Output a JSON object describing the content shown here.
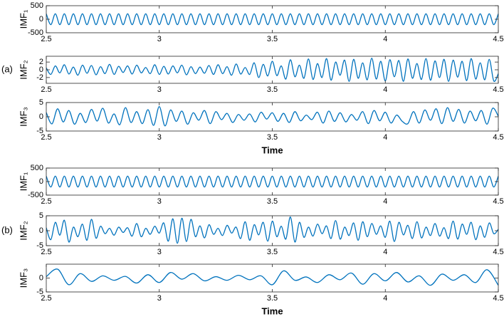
{
  "chart_data": [
    {
      "type": "line",
      "ylabel": "IMF₁",
      "color": "#0072bd",
      "x": [
        2.5,
        2.52,
        2.54,
        2.56,
        2.58,
        2.6,
        2.62,
        2.64,
        2.66,
        2.68,
        2.7,
        2.72,
        2.74,
        2.76,
        2.78,
        2.8,
        2.82,
        2.84,
        2.86,
        2.88,
        2.9,
        2.92,
        2.94,
        2.96,
        2.98,
        3,
        3.02,
        3.04,
        3.06,
        3.08,
        3.1,
        3.12,
        3.14,
        3.16,
        3.18,
        3.2,
        3.22,
        3.24,
        3.26,
        3.28,
        3.3,
        3.32,
        3.34,
        3.36,
        3.38,
        3.4,
        3.42,
        3.44,
        3.46,
        3.48,
        3.5,
        3.52,
        3.54,
        3.56,
        3.58,
        3.6,
        3.62,
        3.64,
        3.66,
        3.68,
        3.7,
        3.72,
        3.74,
        3.76,
        3.78,
        3.8,
        3.82,
        3.84,
        3.86,
        3.88,
        3.9,
        3.92,
        3.94,
        3.96,
        3.98,
        4,
        4.02,
        4.04,
        4.06,
        4.08,
        4.1,
        4.12,
        4.14,
        4.16,
        4.18,
        4.2,
        4.22,
        4.24,
        4.26,
        4.28,
        4.3,
        4.32,
        4.34,
        4.36,
        4.38,
        4.4,
        4.42,
        4.44,
        4.46,
        4.48,
        4.5
      ],
      "values": [
        200,
        -200,
        200,
        -200,
        200,
        -200,
        200,
        -200,
        200,
        -200,
        200,
        -200,
        200,
        -200,
        200,
        -200,
        200,
        -200,
        200,
        -200,
        200,
        -200,
        200,
        -200,
        200,
        -200,
        200,
        -200,
        200,
        -200,
        200,
        -200,
        200,
        -200,
        200,
        -200,
        200,
        -200,
        200,
        -200,
        200,
        -200,
        200,
        -200,
        200,
        -200,
        200,
        -200,
        200,
        -200,
        200,
        -200,
        200,
        -200,
        200,
        -200,
        200,
        -200,
        200,
        -200,
        200,
        -200,
        200,
        -200,
        200,
        -200,
        200,
        -200,
        200,
        -200,
        200,
        -200,
        200,
        -200,
        200,
        -200,
        200,
        -200,
        200,
        -200,
        200,
        -200,
        200,
        -200,
        200,
        -200,
        200,
        -200,
        200,
        -200,
        200,
        -200,
        200,
        -200,
        200,
        -200,
        200,
        -200,
        200,
        -200,
        200
      ],
      "xlim": [
        2.5,
        4.5
      ],
      "xticks": [
        2.5,
        3,
        3.5,
        4,
        4.5
      ],
      "ylim": [
        -500,
        500
      ],
      "yticks": [
        -500,
        0,
        500
      ]
    },
    {
      "type": "line",
      "ylabel": "IMF₂",
      "panel_label": "(a)",
      "color": "#0072bd",
      "x": [
        2.5,
        2.52,
        2.54,
        2.56,
        2.58,
        2.6,
        2.62,
        2.64,
        2.66,
        2.68,
        2.7,
        2.72,
        2.74,
        2.76,
        2.78,
        2.8,
        2.82,
        2.84,
        2.86,
        2.88,
        2.9,
        2.92,
        2.94,
        2.96,
        2.98,
        3,
        3.02,
        3.04,
        3.06,
        3.08,
        3.1,
        3.12,
        3.14,
        3.16,
        3.18,
        3.2,
        3.22,
        3.24,
        3.26,
        3.28,
        3.3,
        3.32,
        3.34,
        3.36,
        3.38,
        3.4,
        3.42,
        3.44,
        3.46,
        3.48,
        3.5,
        3.52,
        3.54,
        3.56,
        3.58,
        3.6,
        3.62,
        3.64,
        3.66,
        3.68,
        3.7,
        3.72,
        3.74,
        3.76,
        3.78,
        3.8,
        3.82,
        3.84,
        3.86,
        3.88,
        3.9,
        3.92,
        3.94,
        3.96,
        3.98,
        4,
        4.02,
        4.04,
        4.06,
        4.08,
        4.1,
        4.12,
        4.14,
        4.16,
        4.18,
        4.2,
        4.22,
        4.24,
        4.26,
        4.28,
        4.3,
        4.32,
        4.34,
        4.36,
        4.38,
        4.4,
        4.42,
        4.44,
        4.46,
        4.48,
        4.5
      ],
      "values": [
        0.5,
        -1.2,
        1.0,
        -0.8,
        1.3,
        -1.1,
        0.7,
        -1.4,
        1.2,
        -0.9,
        1.1,
        -1.3,
        0.8,
        -1.0,
        1.4,
        -1.2,
        0.9,
        -0.7,
        1.0,
        -1.1,
        1.2,
        -0.8,
        0.6,
        -1.0,
        1.3,
        -1.2,
        0.9,
        -1.1,
        1.0,
        -0.8,
        1.2,
        -1.3,
        0.8,
        -1.0,
        0.7,
        -0.9,
        1.1,
        -1.2,
        1.3,
        -1.0,
        0.8,
        -1.4,
        1.5,
        -1.1,
        0.6,
        -1.2,
        1.8,
        -2.0,
        1.4,
        -1.6,
        2.2,
        -1.5,
        1.0,
        -2.4,
        2.6,
        -1.8,
        1.2,
        -2.2,
        2.8,
        -2.5,
        1.6,
        -2.0,
        2.9,
        -2.7,
        2.0,
        -1.4,
        2.5,
        -3.0,
        2.7,
        -2.2,
        1.8,
        -2.6,
        3.0,
        -2.4,
        2.2,
        -2.9,
        2.6,
        -1.8,
        2.4,
        -3.0,
        2.8,
        -2.2,
        1.6,
        -2.5,
        2.9,
        -2.7,
        2.3,
        -2.0,
        2.7,
        -3.0,
        2.5,
        -1.9,
        2.2,
        -2.8,
        2.9,
        -2.4,
        1.8,
        -2.6,
        2.7,
        -2.9,
        -1.0
      ],
      "xlim": [
        2.5,
        4.5
      ],
      "xticks": [
        2.5,
        3,
        3.5,
        4,
        4.5
      ],
      "ylim": [
        -3.5,
        3.5
      ],
      "yticks": [
        -2,
        0,
        2
      ]
    },
    {
      "type": "line",
      "ylabel": "IMF₃",
      "xlabel": "Time",
      "color": "#0072bd",
      "x": [
        2.5,
        2.525,
        2.55,
        2.575,
        2.6,
        2.625,
        2.65,
        2.675,
        2.7,
        2.725,
        2.75,
        2.775,
        2.8,
        2.825,
        2.85,
        2.875,
        2.9,
        2.925,
        2.95,
        2.975,
        3,
        3.025,
        3.05,
        3.075,
        3.1,
        3.125,
        3.15,
        3.175,
        3.2,
        3.225,
        3.25,
        3.275,
        3.3,
        3.325,
        3.35,
        3.375,
        3.4,
        3.425,
        3.45,
        3.475,
        3.5,
        3.525,
        3.55,
        3.575,
        3.6,
        3.625,
        3.65,
        3.675,
        3.7,
        3.725,
        3.75,
        3.775,
        3.8,
        3.825,
        3.85,
        3.875,
        3.9,
        3.925,
        3.95,
        3.975,
        4,
        4.025,
        4.05,
        4.075,
        4.1,
        4.125,
        4.15,
        4.175,
        4.2,
        4.225,
        4.25,
        4.275,
        4.3,
        4.325,
        4.35,
        4.375,
        4.4,
        4.425,
        4.45,
        4.475,
        4.5
      ],
      "values": [
        1.5,
        -2.5,
        2.8,
        -1.8,
        2.2,
        -2.6,
        1.2,
        -2.0,
        2.6,
        -1.5,
        3.0,
        -2.2,
        1.0,
        -2.8,
        3.2,
        -2.0,
        1.8,
        -2.4,
        2.5,
        -3.0,
        3.6,
        -3.2,
        2.4,
        -1.6,
        2.0,
        -2.6,
        1.4,
        -1.2,
        2.2,
        -2.4,
        1.8,
        -1.0,
        1.2,
        -2.0,
        0.8,
        -1.2,
        1.0,
        -1.8,
        1.6,
        -0.8,
        1.4,
        -1.6,
        1.2,
        -2.0,
        1.8,
        -1.4,
        0.6,
        -1.0,
        1.6,
        -2.2,
        2.0,
        -1.6,
        1.4,
        -1.8,
        0.8,
        -1.2,
        1.8,
        -2.4,
        2.2,
        -1.4,
        1.6,
        -2.2,
        0.6,
        -1.6,
        -2.4,
        1.8,
        -2.2,
        2.4,
        -1.2,
        2.8,
        -2.4,
        3.2,
        -1.6,
        2.6,
        -2.2,
        2.0,
        -1.4,
        2.2,
        -2.6,
        3.0,
        0.2
      ],
      "xlim": [
        2.5,
        4.5
      ],
      "xticks": [
        2.5,
        3,
        3.5,
        4,
        4.5
      ],
      "ylim": [
        -5,
        5
      ],
      "yticks": [
        -5,
        0,
        5
      ]
    },
    {
      "type": "line",
      "ylabel": "IMF₁",
      "color": "#0072bd",
      "x": [
        2.5,
        2.52,
        2.54,
        2.56,
        2.58,
        2.6,
        2.62,
        2.64,
        2.66,
        2.68,
        2.7,
        2.72,
        2.74,
        2.76,
        2.78,
        2.8,
        2.82,
        2.84,
        2.86,
        2.88,
        2.9,
        2.92,
        2.94,
        2.96,
        2.98,
        3,
        3.02,
        3.04,
        3.06,
        3.08,
        3.1,
        3.12,
        3.14,
        3.16,
        3.18,
        3.2,
        3.22,
        3.24,
        3.26,
        3.28,
        3.3,
        3.32,
        3.34,
        3.36,
        3.38,
        3.4,
        3.42,
        3.44,
        3.46,
        3.48,
        3.5,
        3.52,
        3.54,
        3.56,
        3.58,
        3.6,
        3.62,
        3.64,
        3.66,
        3.68,
        3.7,
        3.72,
        3.74,
        3.76,
        3.78,
        3.8,
        3.82,
        3.84,
        3.86,
        3.88,
        3.9,
        3.92,
        3.94,
        3.96,
        3.98,
        4,
        4.02,
        4.04,
        4.06,
        4.08,
        4.1,
        4.12,
        4.14,
        4.16,
        4.18,
        4.2,
        4.22,
        4.24,
        4.26,
        4.28,
        4.3,
        4.32,
        4.34,
        4.36,
        4.38,
        4.4,
        4.42,
        4.44,
        4.46,
        4.48,
        4.5
      ],
      "values": [
        200,
        -200,
        200,
        -200,
        200,
        -200,
        200,
        -200,
        200,
        -200,
        200,
        -200,
        200,
        -200,
        200,
        -200,
        200,
        -200,
        200,
        -200,
        200,
        -200,
        200,
        -200,
        200,
        -200,
        200,
        -200,
        200,
        -200,
        200,
        -200,
        200,
        -200,
        200,
        -200,
        200,
        -200,
        200,
        -200,
        200,
        -200,
        200,
        -200,
        200,
        -200,
        200,
        -200,
        200,
        -200,
        200,
        -200,
        200,
        -200,
        200,
        -200,
        200,
        -200,
        200,
        -200,
        200,
        -200,
        200,
        -200,
        200,
        -200,
        200,
        -200,
        200,
        -200,
        200,
        -200,
        200,
        -200,
        200,
        -200,
        200,
        -200,
        200,
        -200,
        200,
        -200,
        200,
        -200,
        200,
        -200,
        200,
        -200,
        200,
        -200,
        200,
        -200,
        200,
        -200,
        200,
        -200,
        200,
        -200,
        200,
        -200,
        200
      ],
      "xlim": [
        2.5,
        4.5
      ],
      "xticks": [
        2.5,
        3,
        3.5,
        4,
        4.5
      ],
      "ylim": [
        -500,
        500
      ],
      "yticks": [
        -500,
        0,
        500
      ]
    },
    {
      "type": "line",
      "ylabel": "IMF₂",
      "panel_label": "(b)",
      "color": "#0072bd",
      "x": [
        2.5,
        2.52,
        2.54,
        2.56,
        2.58,
        2.6,
        2.62,
        2.64,
        2.66,
        2.68,
        2.7,
        2.72,
        2.74,
        2.76,
        2.78,
        2.8,
        2.82,
        2.84,
        2.86,
        2.88,
        2.9,
        2.92,
        2.94,
        2.96,
        2.98,
        3,
        3.02,
        3.04,
        3.06,
        3.08,
        3.1,
        3.12,
        3.14,
        3.16,
        3.18,
        3.2,
        3.22,
        3.24,
        3.26,
        3.28,
        3.3,
        3.32,
        3.34,
        3.36,
        3.38,
        3.4,
        3.42,
        3.44,
        3.46,
        3.48,
        3.5,
        3.52,
        3.54,
        3.56,
        3.58,
        3.6,
        3.62,
        3.64,
        3.66,
        3.68,
        3.7,
        3.72,
        3.74,
        3.76,
        3.78,
        3.8,
        3.82,
        3.84,
        3.86,
        3.88,
        3.9,
        3.92,
        3.94,
        3.96,
        3.98,
        4,
        4.02,
        4.04,
        4.06,
        4.08,
        4.1,
        4.12,
        4.14,
        4.16,
        4.18,
        4.2,
        4.22,
        4.24,
        4.26,
        4.28,
        4.3,
        4.32,
        4.34,
        4.36,
        4.38,
        4.4,
        4.42,
        4.44,
        4.46,
        4.48,
        4.5
      ],
      "values": [
        1.0,
        -3.0,
        2.8,
        -1.5,
        3.5,
        -3.8,
        1.2,
        -2.0,
        2.2,
        -3.2,
        3.8,
        -2.5,
        1.5,
        -1.0,
        0.8,
        -1.5,
        1.2,
        -0.6,
        1.0,
        -1.8,
        2.4,
        -2.0,
        0.8,
        -1.2,
        1.5,
        -0.8,
        2.6,
        -3.5,
        4.0,
        -4.2,
        4.2,
        -3.6,
        3.8,
        -2.0,
        1.6,
        -2.4,
        2.0,
        -1.2,
        0.8,
        -1.6,
        1.8,
        -0.8,
        1.2,
        -2.6,
        3.0,
        -3.2,
        2.0,
        -1.4,
        2.8,
        -3.5,
        3.2,
        -2.0,
        1.5,
        -2.8,
        4.6,
        -3.8,
        2.8,
        -2.2,
        1.2,
        -1.8,
        2.2,
        -1.0,
        1.6,
        -2.6,
        3.4,
        -2.8,
        1.2,
        -1.6,
        2.6,
        -3.2,
        3.0,
        -2.0,
        2.4,
        -1.2,
        1.6,
        -2.2,
        3.2,
        -3.6,
        2.8,
        -1.4,
        1.8,
        -2.6,
        3.0,
        -2.4,
        1.2,
        -1.6,
        2.4,
        -1.8,
        1.0,
        -2.6,
        3.2,
        -2.8,
        2.2,
        -1.2,
        2.8,
        -3.0,
        1.6,
        -2.2,
        2.6,
        -1.0,
        0.5
      ],
      "xlim": [
        2.5,
        4.5
      ],
      "xticks": [
        2.5,
        3,
        3.5,
        4,
        4.5
      ],
      "ylim": [
        -5,
        5
      ],
      "yticks": [
        -5,
        0,
        5
      ]
    },
    {
      "type": "line",
      "ylabel": "IMF₃",
      "xlabel": "Time",
      "color": "#0072bd",
      "x": [
        2.5,
        2.55,
        2.6,
        2.65,
        2.7,
        2.75,
        2.8,
        2.85,
        2.9,
        2.95,
        3,
        3.05,
        3.1,
        3.15,
        3.2,
        3.25,
        3.3,
        3.35,
        3.4,
        3.45,
        3.5,
        3.55,
        3.6,
        3.65,
        3.7,
        3.75,
        3.8,
        3.85,
        3.9,
        3.95,
        4,
        4.05,
        4.1,
        4.15,
        4.2,
        4.25,
        4.3,
        4.35,
        4.4,
        4.45,
        4.5
      ],
      "values": [
        0.5,
        3.2,
        -2.4,
        1.6,
        -1.2,
        0.8,
        -0.8,
        0.6,
        -1.8,
        1.2,
        -1.6,
        2.0,
        -0.4,
        1.6,
        -1.0,
        0.5,
        -0.8,
        1.0,
        -0.6,
        0.8,
        -2.4,
        2.6,
        -0.8,
        0.4,
        -1.6,
        1.2,
        -0.6,
        1.8,
        -2.2,
        1.6,
        -1.0,
        2.0,
        -1.4,
        0.8,
        -2.6,
        1.4,
        -0.8,
        1.2,
        -1.6,
        3.0,
        -2.6
      ],
      "xlim": [
        2.5,
        4.5
      ],
      "xticks": [
        2.5,
        3,
        3.5,
        4,
        4.5
      ],
      "ylim": [
        -5,
        5
      ],
      "yticks": [
        -5,
        0
      ]
    }
  ]
}
